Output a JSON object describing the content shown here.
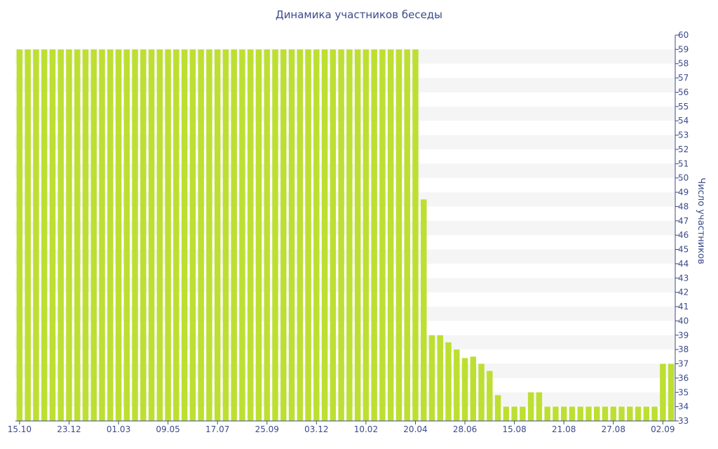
{
  "chart_data": {
    "type": "bar",
    "title": "Динамика участников беседы",
    "xlabel": "",
    "ylabel": "Число участников",
    "ylim": [
      33,
      60
    ],
    "y_ticks": [
      33,
      34,
      35,
      36,
      37,
      38,
      39,
      40,
      41,
      42,
      43,
      44,
      45,
      46,
      47,
      48,
      49,
      50,
      51,
      52,
      53,
      54,
      55,
      56,
      57,
      58,
      59,
      60
    ],
    "x_tick_labels": [
      {
        "index": 0,
        "label": "15.10"
      },
      {
        "index": 6,
        "label": "23.12"
      },
      {
        "index": 12,
        "label": "01.03"
      },
      {
        "index": 18,
        "label": "09.05"
      },
      {
        "index": 24,
        "label": "17.07"
      },
      {
        "index": 30,
        "label": "25.09"
      },
      {
        "index": 36,
        "label": "03.12"
      },
      {
        "index": 42,
        "label": "10.02"
      },
      {
        "index": 48,
        "label": "20.04"
      },
      {
        "index": 54,
        "label": "28.06"
      },
      {
        "index": 60,
        "label": "15.08"
      },
      {
        "index": 66,
        "label": "21.08"
      },
      {
        "index": 72,
        "label": "27.08"
      },
      {
        "index": 78,
        "label": "02.09"
      }
    ],
    "values": [
      59,
      59,
      59,
      59,
      59,
      59,
      59,
      59,
      59,
      59,
      59,
      59,
      59,
      59,
      59,
      59,
      59,
      59,
      59,
      59,
      59,
      59,
      59,
      59,
      59,
      59,
      59,
      59,
      59,
      59,
      59,
      59,
      59,
      59,
      59,
      59,
      59,
      59,
      59,
      59,
      59,
      59,
      59,
      59,
      59,
      59,
      59,
      59,
      59,
      48.5,
      39,
      39,
      38.5,
      38,
      37.4,
      37.5,
      37,
      36.5,
      34.8,
      34,
      34,
      34,
      35,
      35,
      34,
      34,
      34,
      34,
      34,
      34,
      34,
      34,
      34,
      34,
      34,
      34,
      34,
      34,
      37,
      37
    ],
    "bar_color": "#bddf32",
    "band_color": "#f5f5f5",
    "axis_color": "#3b4a8a",
    "grid": "alternating horizontal bands",
    "y_axis_side": "right",
    "legend": "none"
  }
}
